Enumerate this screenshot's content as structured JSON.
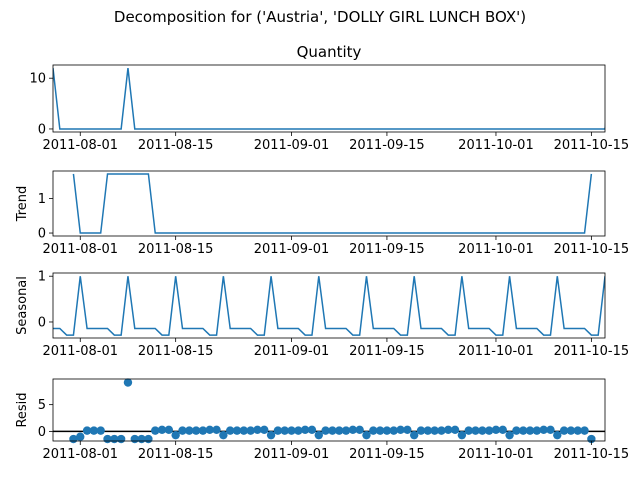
{
  "figure": {
    "suptitle": "Decomposition for ('Austria', 'DOLLY GIRL LUNCH BOX')",
    "line_color": "#1f77b4",
    "zero_line_color": "#000000"
  },
  "chart_data": [
    {
      "type": "line",
      "title": "Quantity",
      "ylabel": "",
      "x_start": "2011-07-28",
      "x_end": "2011-10-17",
      "xticks": [
        "2011-08-01",
        "2011-08-15",
        "2011-09-01",
        "2011-09-15",
        "2011-10-01",
        "2011-10-15"
      ],
      "yticks": [
        0,
        10
      ],
      "ylim": [
        -0.6,
        12.6
      ],
      "series": [
        {
          "values": [
            12,
            0,
            0,
            0,
            0,
            0,
            0,
            0,
            0,
            0,
            0,
            12,
            0,
            0,
            0,
            0,
            0,
            0,
            0,
            0,
            0,
            0,
            0,
            0,
            0,
            0,
            0,
            0,
            0,
            0,
            0,
            0,
            0,
            0,
            0,
            0,
            0,
            0,
            0,
            0,
            0,
            0,
            0,
            0,
            0,
            0,
            0,
            0,
            0,
            0,
            0,
            0,
            0,
            0,
            0,
            0,
            0,
            0,
            0,
            0,
            0,
            0,
            0,
            0,
            0,
            0,
            0,
            0,
            0,
            0,
            0,
            0,
            0,
            0,
            0,
            0,
            0,
            0,
            0,
            0,
            0,
            0,
            12
          ]
        }
      ]
    },
    {
      "type": "line",
      "title": "",
      "ylabel": "Trend",
      "x_start": "2011-07-28",
      "x_end": "2011-10-17",
      "xticks": [
        "2011-08-01",
        "2011-08-15",
        "2011-09-01",
        "2011-09-15",
        "2011-10-01",
        "2011-10-15"
      ],
      "yticks": [
        0,
        1
      ],
      "ylim": [
        -0.086,
        1.8
      ],
      "series": [
        {
          "values": [
            null,
            null,
            null,
            1.714,
            0,
            0,
            0,
            0,
            1.714,
            1.714,
            1.714,
            1.714,
            1.714,
            1.714,
            1.714,
            0,
            0,
            0,
            0,
            0,
            0,
            0,
            0,
            0,
            0,
            0,
            0,
            0,
            0,
            0,
            0,
            0,
            0,
            0,
            0,
            0,
            0,
            0,
            0,
            0,
            0,
            0,
            0,
            0,
            0,
            0,
            0,
            0,
            0,
            0,
            0,
            0,
            0,
            0,
            0,
            0,
            0,
            0,
            0,
            0,
            0,
            0,
            0,
            0,
            0,
            0,
            0,
            0,
            0,
            0,
            0,
            0,
            0,
            0,
            0,
            0,
            0,
            0,
            0,
            1.714,
            null,
            null,
            null
          ]
        }
      ]
    },
    {
      "type": "line",
      "title": "",
      "ylabel": "Seasonal",
      "x_start": "2011-07-28",
      "x_end": "2011-10-17",
      "xticks": [
        "2011-08-01",
        "2011-08-15",
        "2011-09-01",
        "2011-09-15",
        "2011-10-01",
        "2011-10-15"
      ],
      "yticks": [
        0,
        1
      ],
      "ylim": [
        -0.35,
        1.07
      ],
      "series": [
        {
          "values": [
            -0.143,
            -0.143,
            -0.286,
            -0.286,
            1.0,
            -0.143,
            -0.143,
            -0.143,
            -0.143,
            -0.286,
            -0.286,
            1.0,
            -0.143,
            -0.143,
            -0.143,
            -0.143,
            -0.286,
            -0.286,
            1.0,
            -0.143,
            -0.143,
            -0.143,
            -0.143,
            -0.286,
            -0.286,
            1.0,
            -0.143,
            -0.143,
            -0.143,
            -0.143,
            -0.286,
            -0.286,
            1.0,
            -0.143,
            -0.143,
            -0.143,
            -0.143,
            -0.286,
            -0.286,
            1.0,
            -0.143,
            -0.143,
            -0.143,
            -0.143,
            -0.286,
            -0.286,
            1.0,
            -0.143,
            -0.143,
            -0.143,
            -0.143,
            -0.286,
            -0.286,
            1.0,
            -0.143,
            -0.143,
            -0.143,
            -0.143,
            -0.286,
            -0.286,
            1.0,
            -0.143,
            -0.143,
            -0.143,
            -0.143,
            -0.286,
            -0.286,
            1.0,
            -0.143,
            -0.143,
            -0.143,
            -0.143,
            -0.286,
            -0.286,
            1.0,
            -0.143,
            -0.143,
            -0.143,
            -0.143,
            -0.286,
            -0.286,
            1.0,
            -0.143
          ]
        }
      ]
    },
    {
      "type": "scatter",
      "title": "",
      "ylabel": "Resid",
      "x_start": "2011-07-28",
      "x_end": "2011-10-17",
      "xticks": [
        "2011-08-01",
        "2011-08-15",
        "2011-09-01",
        "2011-09-15",
        "2011-10-01",
        "2011-10-15"
      ],
      "yticks": [
        0,
        5
      ],
      "ylim": [
        -1.8,
        9.8
      ],
      "zero_line": true,
      "series": [
        {
          "values": [
            null,
            null,
            null,
            -1.43,
            -1.0,
            0.14,
            0.14,
            0.14,
            -1.43,
            -1.43,
            -1.43,
            9.14,
            -1.43,
            -1.43,
            -1.43,
            0.14,
            0.29,
            0.29,
            -0.71,
            0.14,
            0.14,
            0.14,
            0.14,
            0.29,
            0.29,
            -0.71,
            0.14,
            0.14,
            0.14,
            0.14,
            0.29,
            0.29,
            -0.71,
            0.14,
            0.14,
            0.14,
            0.14,
            0.29,
            0.29,
            -0.71,
            0.14,
            0.14,
            0.14,
            0.14,
            0.29,
            0.29,
            -0.71,
            0.14,
            0.14,
            0.14,
            0.14,
            0.29,
            0.29,
            -0.71,
            0.14,
            0.14,
            0.14,
            0.14,
            0.29,
            0.29,
            -0.71,
            0.14,
            0.14,
            0.14,
            0.14,
            0.29,
            0.29,
            -0.71,
            0.14,
            0.14,
            0.14,
            0.14,
            0.29,
            0.29,
            -0.71,
            0.14,
            0.14,
            0.14,
            0.14,
            -1.43,
            null,
            null,
            null
          ]
        }
      ]
    }
  ]
}
